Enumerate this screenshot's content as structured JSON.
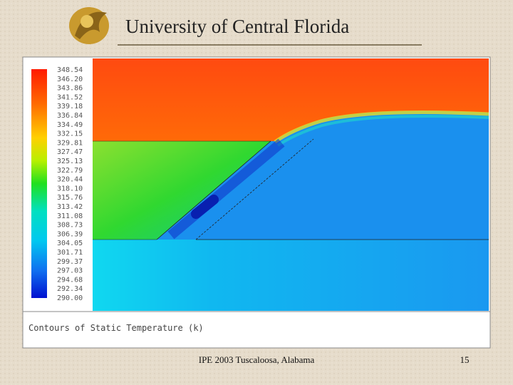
{
  "header": {
    "title": "University of Central Florida"
  },
  "figure": {
    "colorbar_labels": [
      "348.54",
      "346.20",
      "343.86",
      "341.52",
      "339.18",
      "336.84",
      "334.49",
      "332.15",
      "329.81",
      "327.47",
      "325.13",
      "322.79",
      "320.44",
      "318.10",
      "315.76",
      "313.42",
      "311.08",
      "308.73",
      "306.39",
      "304.05",
      "301.71",
      "299.37",
      "297.03",
      "294.68",
      "292.34",
      "290.00"
    ],
    "caption": "Contours of Static Temperature (k)"
  },
  "footer": {
    "text": "IPE 2003 Tuscaloosa, Alabama",
    "page": "15"
  }
}
